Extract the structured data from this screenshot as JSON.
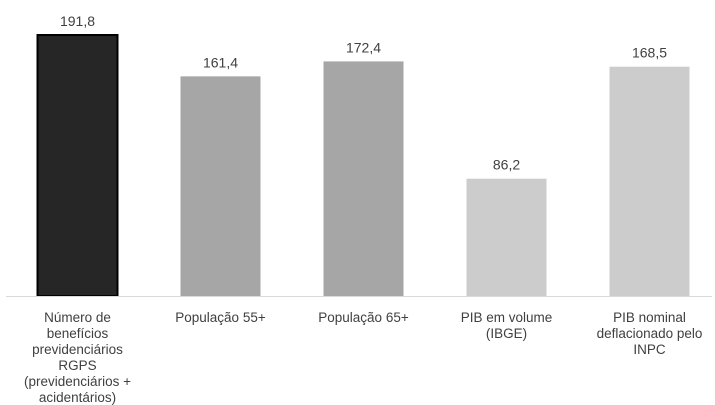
{
  "chart_data": {
    "type": "bar",
    "title": "",
    "xlabel": "",
    "ylabel": "",
    "ylim": [
      0,
      200
    ],
    "grid": false,
    "legend": "none",
    "categories": [
      "Número de benefícios previdenciários RGPS (previdenciários + acidentários)",
      "População 55+",
      "População 65+",
      "PIB em volume (IBGE)",
      "PIB nominal deflacionado pelo INPC"
    ],
    "category_lines": [
      [
        "Número de",
        "benefícios",
        "previdenciários",
        "RGPS",
        "(previdenciários +",
        "acidentários)"
      ],
      [
        "População 55+"
      ],
      [
        "População 65+"
      ],
      [
        "PIB em volume",
        "(IBGE)"
      ],
      [
        "PIB nominal",
        "deflacionado pelo",
        "INPC"
      ]
    ],
    "values": [
      191.8,
      161.4,
      172.4,
      86.2,
      168.5
    ],
    "value_labels": [
      "191,8",
      "161,4",
      "172,4",
      "86,2",
      "168,5"
    ],
    "bar_colors": [
      "#262626",
      "#a6a6a6",
      "#a6a6a6",
      "#cccccc",
      "#cccccc"
    ],
    "bar_outline": [
      "#000000",
      "none",
      "none",
      "none",
      "none"
    ]
  }
}
